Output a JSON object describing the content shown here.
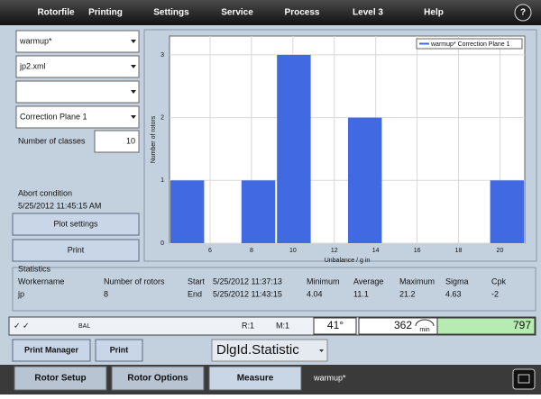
{
  "menu": [
    "Rotorfile",
    "Printing",
    "Settings",
    "Service",
    "Process",
    "Level 3",
    "Help"
  ],
  "help_icon": "?",
  "selectors": [
    "warmup*",
    "jp2.xml",
    "Correction Plane 1"
  ],
  "classes": {
    "label": "Number of classes",
    "value": 10
  },
  "abort": {
    "label": "Abort condition",
    "time": "5/25/2012 11:45:15 AM"
  },
  "buttons": {
    "plot_settings": "Plot settings",
    "print": "Print",
    "print_manager": "Print Manager",
    "print_small": "Print"
  },
  "histogram": {
    "type": "histogram",
    "legend": "warmup* Correction Plane 1",
    "color": "#4169e1",
    "bins": [
      4.04,
      5.756,
      7.472,
      9.188,
      10.904,
      12.62,
      14.336,
      16.052,
      17.768,
      19.484,
      21.2
    ],
    "counts": [
      1,
      0,
      1,
      3,
      0,
      2,
      0,
      0,
      0,
      1
    ],
    "xlim": [
      4.04,
      21.2
    ],
    "ylim": [
      0,
      3.3
    ],
    "xticks": [
      6,
      8,
      10,
      12,
      14,
      16,
      18,
      20
    ],
    "yticks": [
      0,
      1,
      2,
      3
    ],
    "xlabel": "Unbalance / g in",
    "ylabel": "Number of rotors",
    "grid": true
  },
  "statistics": {
    "title": "Statistics",
    "columns": [
      "Workername",
      "Number of rotors",
      "Start",
      "5/25/2012 11:37:13",
      "Minimum",
      "Average",
      "Maximum",
      "Sigma",
      "Cpk"
    ],
    "row": [
      "jp",
      8,
      "End",
      "5/25/2012 11:43:15",
      4.04,
      11.1,
      21.2,
      4.63,
      -2
    ]
  },
  "status": {
    "checks": "✓ ✓",
    "mode": "BAL",
    "r": "R:1",
    "m": "M:1",
    "angle": "41°",
    "rpm": 362,
    "rpm_unit": "min",
    "value": 797
  },
  "select": "DlgId.Statistic",
  "tabs": [
    "Rotor Setup",
    "Rotor Options",
    "Measure"
  ],
  "file": "warmup*"
}
